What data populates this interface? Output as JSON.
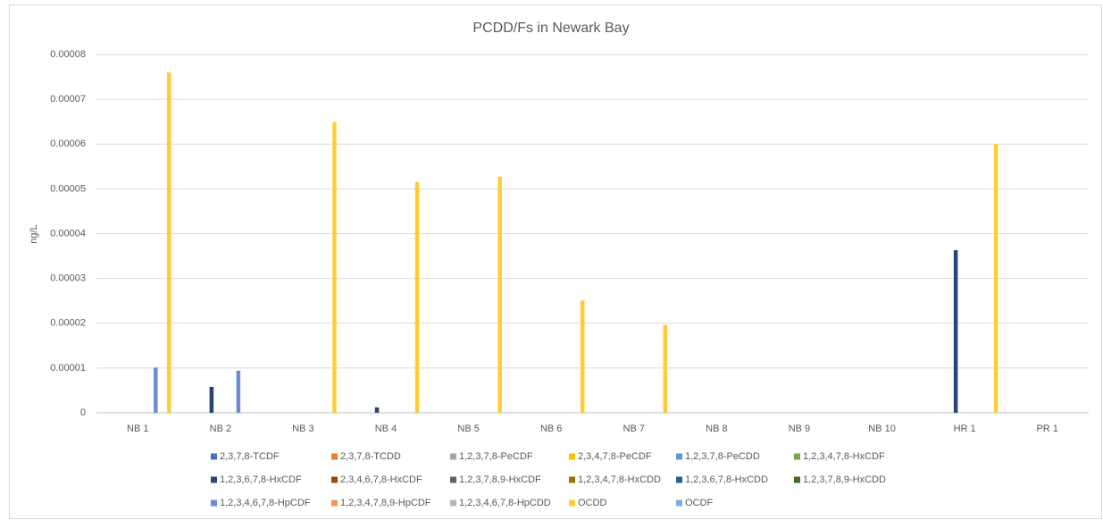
{
  "chart_data": {
    "type": "bar",
    "title": "PCDD/Fs in Newark Bay",
    "y_label": "ng/L",
    "categories": [
      "NB 1",
      "NB 2",
      "NB 3",
      "NB 4",
      "NB 5",
      "NB 6",
      "NB 7",
      "NB 8",
      "NB 9",
      "NB 10",
      "HR 1",
      "PR 1"
    ],
    "ylim": [
      0,
      8e-05
    ],
    "yticks": [
      0,
      1e-05,
      2e-05,
      3e-05,
      4e-05,
      5e-05,
      6e-05,
      7e-05,
      8e-05
    ],
    "grid": true,
    "legend": "bottom",
    "series": [
      {
        "name": "2,3,7,8-TCDF",
        "color": "#4472c4",
        "values": [
          0,
          0,
          0,
          0,
          0,
          0,
          0,
          0,
          0,
          0,
          0,
          0
        ]
      },
      {
        "name": "2,3,7,8-TCDD",
        "color": "#ed7d31",
        "values": [
          0,
          0,
          0,
          0,
          0,
          0,
          0,
          0,
          0,
          0,
          0,
          0
        ]
      },
      {
        "name": "1,2,3,7,8-PeCDF",
        "color": "#a5a5a5",
        "values": [
          0,
          0,
          0,
          0,
          0,
          0,
          0,
          0,
          0,
          0,
          0,
          0
        ]
      },
      {
        "name": "2,3,4,7,8-PeCDF",
        "color": "#ffc000",
        "values": [
          0,
          0,
          0,
          0,
          0,
          0,
          0,
          0,
          0,
          0,
          0,
          0
        ]
      },
      {
        "name": "1,2,3,7,8-PeCDD",
        "color": "#5b9bd5",
        "values": [
          0,
          0,
          0,
          0,
          0,
          0,
          0,
          0,
          0,
          0,
          0,
          0
        ]
      },
      {
        "name": "1,2,3,4,7,8-HxCDF",
        "color": "#70ad47",
        "values": [
          0,
          0,
          0,
          0,
          0,
          0,
          0,
          0,
          0,
          0,
          0,
          0
        ]
      },
      {
        "name": "1,2,3,6,7,8-HxCDF",
        "color": "#264478",
        "values": [
          0,
          5.8e-06,
          0,
          1.2e-06,
          0,
          0,
          0,
          0,
          0,
          0,
          3.63e-05,
          0
        ]
      },
      {
        "name": "2,3,4,6,7,8-HxCDF",
        "color": "#9e480e",
        "values": [
          0,
          0,
          0,
          0,
          0,
          0,
          0,
          0,
          0,
          0,
          0,
          0
        ]
      },
      {
        "name": "1,2,3,7,8,9-HxCDF",
        "color": "#636363",
        "values": [
          0,
          0,
          0,
          0,
          0,
          0,
          0,
          0,
          0,
          0,
          0,
          0
        ]
      },
      {
        "name": "1,2,3,4,7,8-HxCDD",
        "color": "#997300",
        "values": [
          0,
          0,
          0,
          0,
          0,
          0,
          0,
          0,
          0,
          0,
          0,
          0
        ]
      },
      {
        "name": "1,2,3,6,7,8-HxCDD",
        "color": "#255e91",
        "values": [
          0,
          0,
          0,
          0,
          0,
          0,
          0,
          0,
          0,
          0,
          0,
          0
        ]
      },
      {
        "name": "1,2,3,7,8,9-HxCDD",
        "color": "#43682b",
        "values": [
          0,
          0,
          0,
          0,
          0,
          0,
          0,
          0,
          0,
          0,
          0,
          0
        ]
      },
      {
        "name": "1,2,3,4,6,7,8-HpCDF",
        "color": "#698ed0",
        "values": [
          1.01e-05,
          9.4e-06,
          0,
          0,
          0,
          0,
          0,
          0,
          0,
          0,
          0,
          0
        ]
      },
      {
        "name": "1,2,3,4,7,8,9-HpCDF",
        "color": "#f1975a",
        "values": [
          0,
          0,
          0,
          0,
          0,
          0,
          0,
          0,
          0,
          0,
          0,
          0
        ]
      },
      {
        "name": "1,2,3,4,6,7,8-HpCDD",
        "color": "#b7b7b7",
        "values": [
          0,
          0,
          0,
          0,
          0,
          0,
          0,
          0,
          0,
          0,
          0,
          0
        ]
      },
      {
        "name": "OCDD",
        "color": "#ffcd33",
        "values": [
          7.6e-05,
          0,
          6.49e-05,
          5.15e-05,
          5.27e-05,
          2.51e-05,
          1.96e-05,
          0,
          0,
          0,
          6e-05,
          0
        ]
      },
      {
        "name": "OCDF",
        "color": "#7cafdd",
        "values": [
          0,
          0,
          0,
          0,
          0,
          0,
          0,
          0,
          0,
          0,
          0,
          0
        ]
      }
    ]
  }
}
